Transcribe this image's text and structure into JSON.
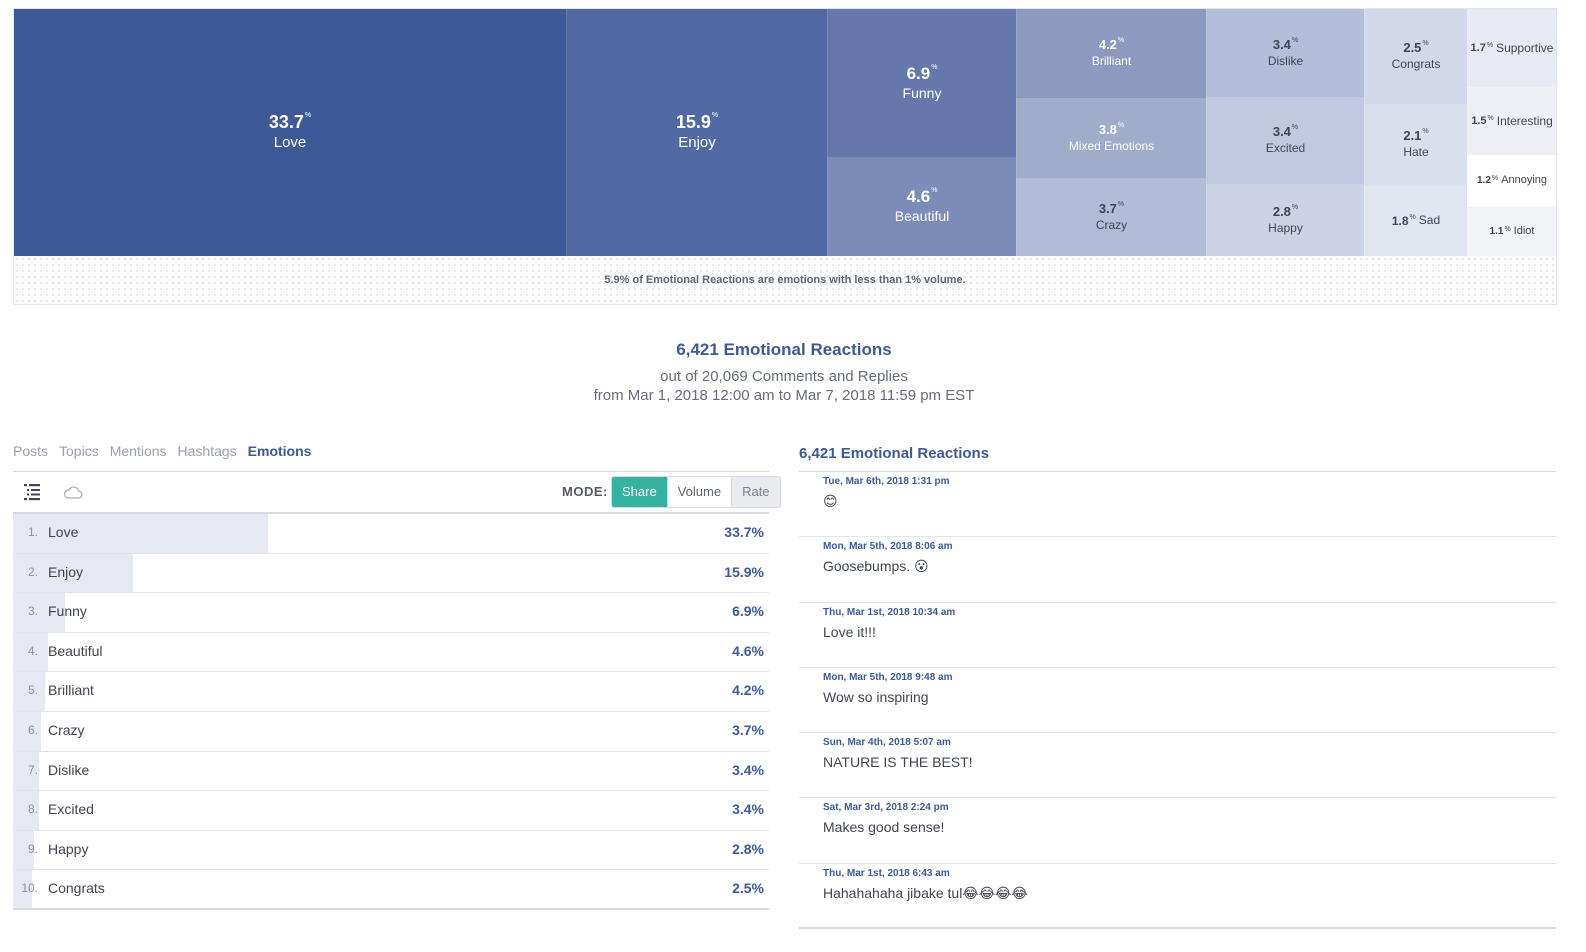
{
  "treemap": {
    "items": [
      {
        "value": "33.7",
        "unit": "%",
        "label": "Love"
      },
      {
        "value": "15.9",
        "unit": "%",
        "label": "Enjoy"
      },
      {
        "value": "6.9",
        "unit": "%",
        "label": "Funny"
      },
      {
        "value": "4.6",
        "unit": "%",
        "label": "Beautiful"
      },
      {
        "value": "4.2",
        "unit": "%",
        "label": "Brilliant"
      },
      {
        "value": "3.8",
        "unit": "%",
        "label": "Mixed Emotions"
      },
      {
        "value": "3.7",
        "unit": "%",
        "label": "Crazy"
      },
      {
        "value": "3.4",
        "unit": "%",
        "label": "Dislike"
      },
      {
        "value": "3.4",
        "unit": "%",
        "label": "Excited"
      },
      {
        "value": "2.8",
        "unit": "%",
        "label": "Happy"
      },
      {
        "value": "2.5",
        "unit": "%",
        "label": "Congrats"
      },
      {
        "value": "2.1",
        "unit": "%",
        "label": "Hate"
      },
      {
        "value": "1.8",
        "unit": "%",
        "label": "Sad"
      },
      {
        "value": "1.7",
        "unit": "%",
        "label": "Supportive"
      },
      {
        "value": "1.5",
        "unit": "%",
        "label": "Interesting"
      },
      {
        "value": "1.2",
        "unit": "%",
        "label": "Annoying"
      },
      {
        "value": "1.1",
        "unit": "%",
        "label": "Idiot"
      }
    ],
    "footnote": "5.9% of Emotional Reactions are emotions with less than 1% volume."
  },
  "summary": {
    "title": "6,421 Emotional Reactions",
    "subtitle": "out of 20,069 Comments and Replies",
    "date_range": "from Mar 1, 2018 12:00 am to Mar 7, 2018 11:59 pm EST"
  },
  "tabs": [
    {
      "label": "Posts",
      "active": false
    },
    {
      "label": "Topics",
      "active": false
    },
    {
      "label": "Mentions",
      "active": false
    },
    {
      "label": "Hashtags",
      "active": false
    },
    {
      "label": "Emotions",
      "active": true
    }
  ],
  "toolbar": {
    "list_icon": "list-view-icon",
    "cloud_icon": "cloud-view-icon",
    "mode_label": "MODE:",
    "modes": [
      "Share",
      "Volume",
      "Rate"
    ],
    "active_mode": "Share"
  },
  "emotion_table": [
    {
      "rank": "1.",
      "name": "Love",
      "share": "33.7%",
      "share_value": 33.7
    },
    {
      "rank": "2.",
      "name": "Enjoy",
      "share": "15.9%",
      "share_value": 15.9
    },
    {
      "rank": "3.",
      "name": "Funny",
      "share": "6.9%",
      "share_value": 6.9
    },
    {
      "rank": "4.",
      "name": "Beautiful",
      "share": "4.6%",
      "share_value": 4.6
    },
    {
      "rank": "5.",
      "name": "Brilliant",
      "share": "4.2%",
      "share_value": 4.2
    },
    {
      "rank": "6.",
      "name": "Crazy",
      "share": "3.7%",
      "share_value": 3.7
    },
    {
      "rank": "7.",
      "name": "Dislike",
      "share": "3.4%",
      "share_value": 3.4
    },
    {
      "rank": "8.",
      "name": "Excited",
      "share": "3.4%",
      "share_value": 3.4
    },
    {
      "rank": "9.",
      "name": "Happy",
      "share": "2.8%",
      "share_value": 2.8
    },
    {
      "rank": "10.",
      "name": "Congrats",
      "share": "2.5%",
      "share_value": 2.5
    }
  ],
  "feed": {
    "title": "6,421 Emotional Reactions",
    "items": [
      {
        "timestamp": "Tue, Mar 6th, 2018 1:31 pm",
        "text": "😊"
      },
      {
        "timestamp": "Mon, Mar 5th, 2018 8:06 am",
        "text": "Goosebumps. 😮"
      },
      {
        "timestamp": "Thu, Mar 1st, 2018 10:34 am",
        "text": "Love it!!!"
      },
      {
        "timestamp": "Mon, Mar 5th, 2018 9:48 am",
        "text": "Wow so inspiring"
      },
      {
        "timestamp": "Sun, Mar 4th, 2018 5:07 am",
        "text": "NATURE IS THE BEST!"
      },
      {
        "timestamp": "Sat, Mar 3rd, 2018 2:24 pm",
        "text": "Makes good sense!"
      },
      {
        "timestamp": "Thu, Mar 1st, 2018 6:43 am",
        "text": "Hahahahaha jibake tul😂😂😂😂"
      }
    ]
  },
  "colors": {
    "accent": "#3b5a9a",
    "active_mode": "#34b3a1",
    "bar_fill": "#e6e9f1"
  }
}
